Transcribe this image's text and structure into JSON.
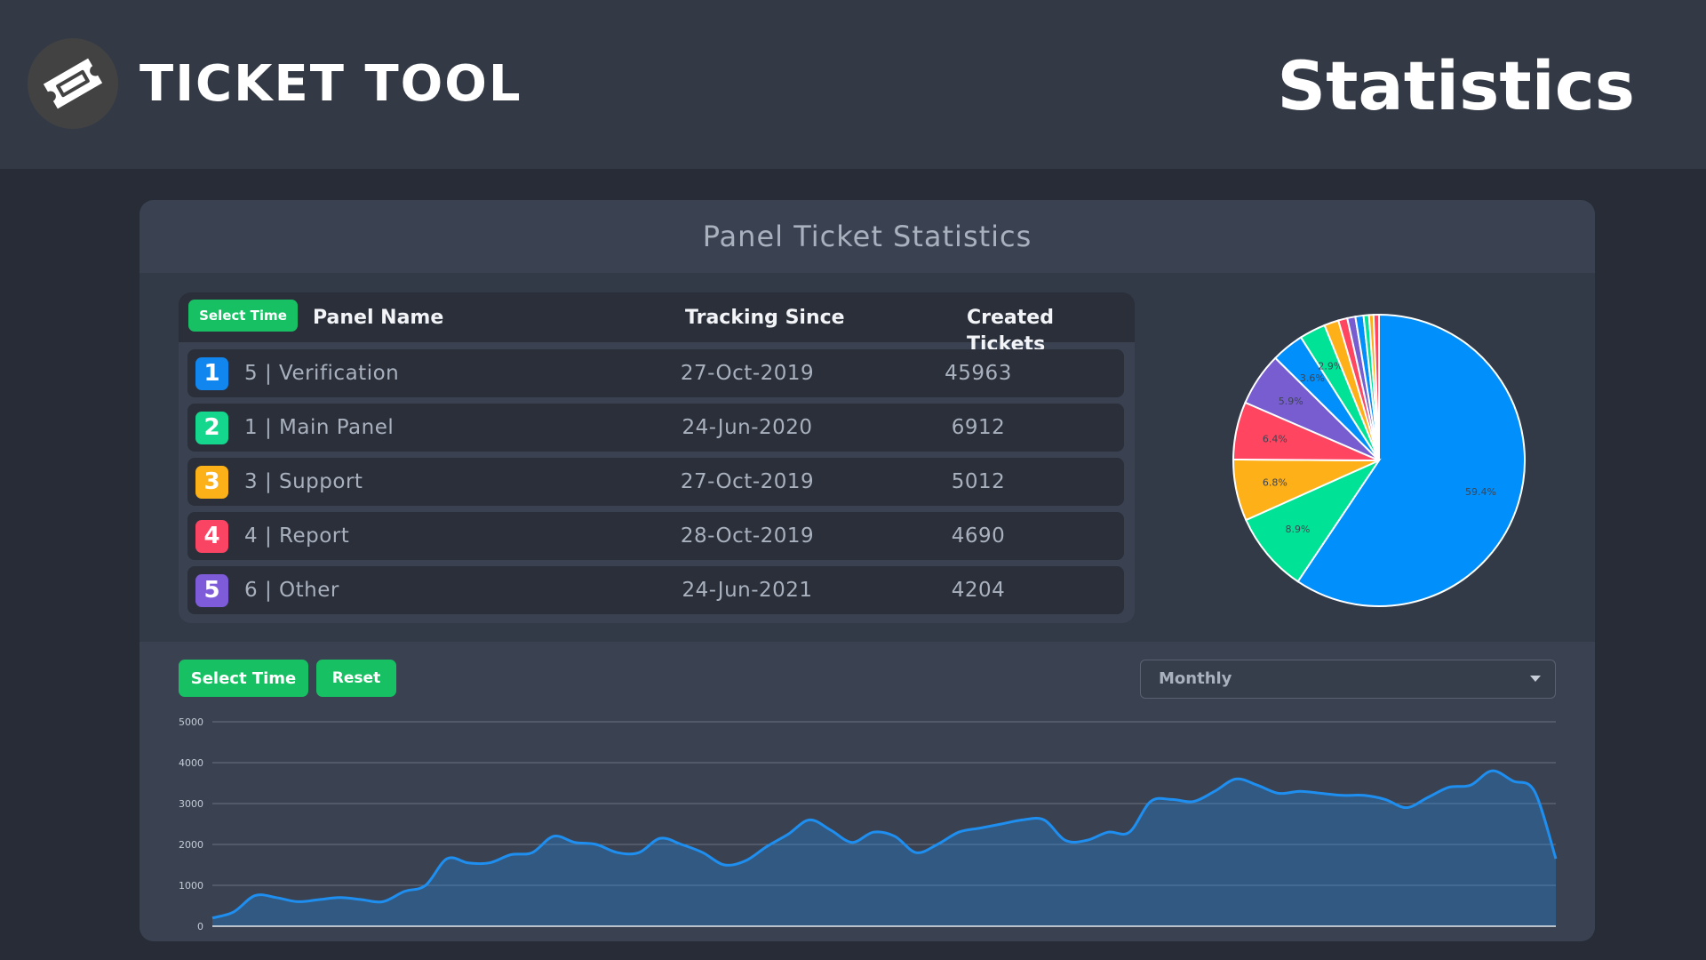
{
  "header": {
    "brand": "TICKET TOOL",
    "title": "Statistics",
    "logo_icon": "ticket-icon"
  },
  "card": {
    "title": "Panel Ticket Statistics"
  },
  "table": {
    "select_time_label": "Select Time",
    "columns": [
      "Panel Name",
      "Tracking Since",
      "Created Tickets"
    ],
    "rows": [
      {
        "rank": "1",
        "name": "5 | Verification",
        "since": "27-Oct-2019",
        "tickets": "45963",
        "color": "#1186ee"
      },
      {
        "rank": "2",
        "name": "1 | Main Panel",
        "since": "24-Jun-2020",
        "tickets": "6912",
        "color": "#14d68d"
      },
      {
        "rank": "3",
        "name": "3 | Support",
        "since": "27-Oct-2019",
        "tickets": "5012",
        "color": "#fbb117"
      },
      {
        "rank": "4",
        "name": "4 | Report",
        "since": "28-Oct-2019",
        "tickets": "4690",
        "color": "#fa4463"
      },
      {
        "rank": "5",
        "name": "6 | Other",
        "since": "24-Jun-2021",
        "tickets": "4204",
        "color": "#7d5bd9"
      }
    ]
  },
  "controls": {
    "select_time_label": "Select Time",
    "reset_label": "Reset",
    "interval": "Monthly"
  },
  "chart_data": [
    {
      "type": "pie",
      "slices": [
        {
          "value": 59.4,
          "label": "59.4%",
          "color": "#008ffb"
        },
        {
          "value": 8.9,
          "label": "8.9%",
          "color": "#00e396"
        },
        {
          "value": 6.8,
          "label": "6.8%",
          "color": "#feb019"
        },
        {
          "value": 6.4,
          "label": "6.4%",
          "color": "#ff4560"
        },
        {
          "value": 5.9,
          "label": "5.9%",
          "color": "#775dd0"
        },
        {
          "value": 3.6,
          "label": "3.6%",
          "color": "#008ffb"
        },
        {
          "value": 2.9,
          "label": "2.9%",
          "color": "#00e396"
        },
        {
          "value": 1.6,
          "label": "",
          "color": "#feb019"
        },
        {
          "value": 1.0,
          "label": "",
          "color": "#ff4560"
        },
        {
          "value": 0.9,
          "label": "",
          "color": "#775dd0"
        },
        {
          "value": 0.9,
          "label": "",
          "color": "#008ffb"
        },
        {
          "value": 0.6,
          "label": "",
          "color": "#00e396"
        },
        {
          "value": 0.5,
          "label": "",
          "color": "#feb019"
        },
        {
          "value": 0.6,
          "label": "",
          "color": "#ff4560"
        }
      ]
    },
    {
      "type": "area",
      "ylim": [
        0,
        5000
      ],
      "yticks": [
        0,
        1000,
        2000,
        3000,
        4000,
        5000
      ],
      "grid": true,
      "color": "#1e8ff0",
      "x": [
        0,
        1,
        2,
        3,
        4,
        5,
        6,
        7,
        8,
        9,
        10,
        11,
        12,
        13,
        14,
        15,
        16,
        17,
        18,
        19,
        20,
        21,
        22,
        23,
        24,
        25,
        26,
        27,
        28,
        29,
        30,
        31,
        32,
        33,
        34,
        35,
        36,
        37,
        38,
        39,
        40,
        41,
        42,
        43,
        44,
        45,
        46,
        47,
        48,
        49,
        50,
        51,
        52,
        53,
        54,
        55,
        56,
        57,
        58,
        59,
        60,
        61,
        62,
        63
      ],
      "values": [
        200,
        350,
        750,
        700,
        600,
        650,
        700,
        650,
        600,
        850,
        1000,
        1650,
        1550,
        1550,
        1750,
        1800,
        2200,
        2050,
        2000,
        1800,
        1800,
        2150,
        2000,
        1800,
        1500,
        1600,
        1950,
        2250,
        2600,
        2350,
        2050,
        2300,
        2200,
        1800,
        2000,
        2300,
        2400,
        2500,
        2600,
        2600,
        2100,
        2100,
        2300,
        2300,
        3050,
        3100,
        3050,
        3300,
        3600,
        3450,
        3250,
        3300,
        3250,
        3200,
        3200,
        3100,
        2900,
        3150,
        3400,
        3450,
        3800,
        3550,
        3300,
        1650
      ]
    }
  ]
}
